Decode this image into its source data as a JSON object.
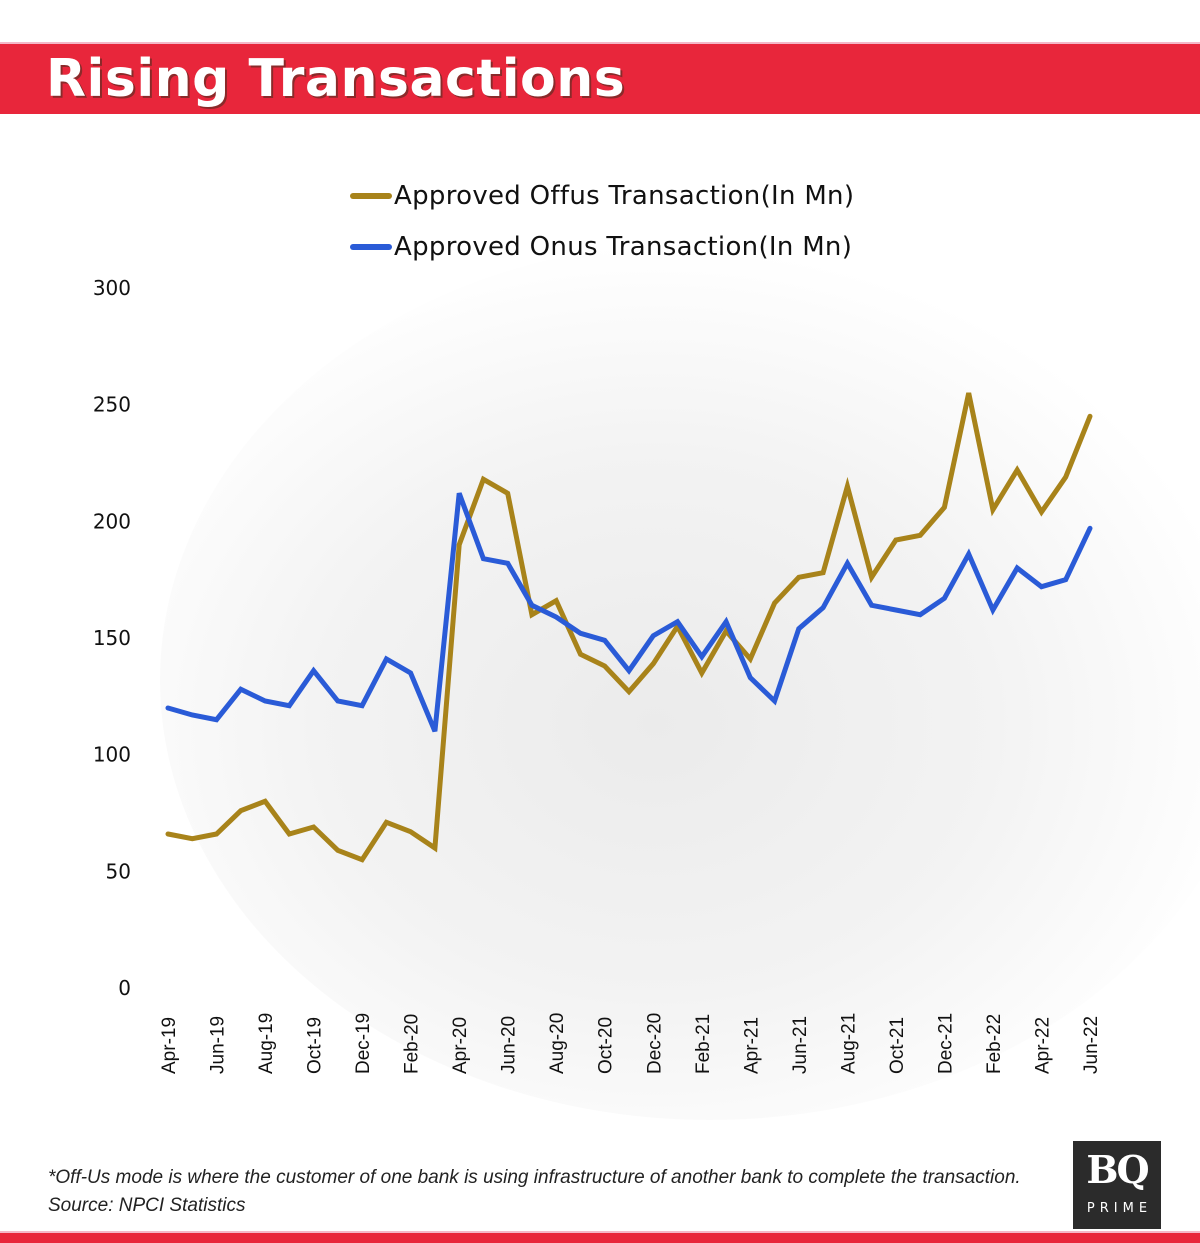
{
  "header": {
    "title": "Rising Transactions"
  },
  "colors": {
    "banner": "#e8263b",
    "offus": "#a8831a",
    "onus": "#2a5bd7"
  },
  "chart_data": {
    "type": "line",
    "title": "Rising Transactions",
    "xlabel": "",
    "ylabel": "",
    "ylim": [
      0,
      300
    ],
    "yticks": [
      0,
      50,
      100,
      150,
      200,
      250,
      300
    ],
    "grid": false,
    "legend_position": "top",
    "x": [
      "Apr-19",
      "May-19",
      "Jun-19",
      "Jul-19",
      "Aug-19",
      "Sep-19",
      "Oct-19",
      "Nov-19",
      "Dec-19",
      "Jan-20",
      "Feb-20",
      "Mar-20",
      "Apr-20",
      "May-20",
      "Jun-20",
      "Jul-20",
      "Aug-20",
      "Sep-20",
      "Oct-20",
      "Nov-20",
      "Dec-20",
      "Jan-21",
      "Feb-21",
      "Mar-21",
      "Apr-21",
      "May-21",
      "Jun-21",
      "Jul-21",
      "Aug-21",
      "Sep-21",
      "Oct-21",
      "Nov-21",
      "Dec-21",
      "Jan-22",
      "Feb-22",
      "Mar-22",
      "Apr-22",
      "May-22",
      "Jun-22"
    ],
    "xtick_labels": [
      "Apr-19",
      "Jun-19",
      "Aug-19",
      "Oct-19",
      "Dec-19",
      "Feb-20",
      "Apr-20",
      "Jun-20",
      "Aug-20",
      "Oct-20",
      "Dec-20",
      "Feb-21",
      "Apr-21",
      "Jun-21",
      "Aug-21",
      "Oct-21",
      "Dec-21",
      "Feb-22",
      "Apr-22",
      "Jun-22"
    ],
    "series": [
      {
        "name": "Approved Offus Transaction(In Mn)",
        "color": "#a8831a",
        "values": [
          66,
          64,
          66,
          76,
          80,
          66,
          69,
          59,
          55,
          71,
          67,
          60,
          190,
          218,
          212,
          160,
          166,
          143,
          138,
          127,
          139,
          155,
          135,
          153,
          141,
          165,
          176,
          178,
          215,
          176,
          192,
          194,
          206,
          255,
          205,
          222,
          204,
          219,
          245
        ]
      },
      {
        "name": "Approved Onus Transaction(In Mn)",
        "color": "#2a5bd7",
        "values": [
          120,
          117,
          115,
          128,
          123,
          121,
          136,
          123,
          121,
          141,
          135,
          110,
          212,
          184,
          182,
          164,
          159,
          152,
          149,
          136,
          151,
          157,
          142,
          157,
          133,
          123,
          154,
          163,
          182,
          164,
          162,
          160,
          167,
          186,
          162,
          180,
          172,
          175,
          197
        ]
      }
    ]
  },
  "footer": {
    "note": "*Off-Us mode is where the customer of one bank is using infrastructure of another bank to complete the transaction.",
    "source": "Source: NPCI Statistics"
  },
  "logo": {
    "main": "BQ",
    "sub": "PRIME"
  }
}
